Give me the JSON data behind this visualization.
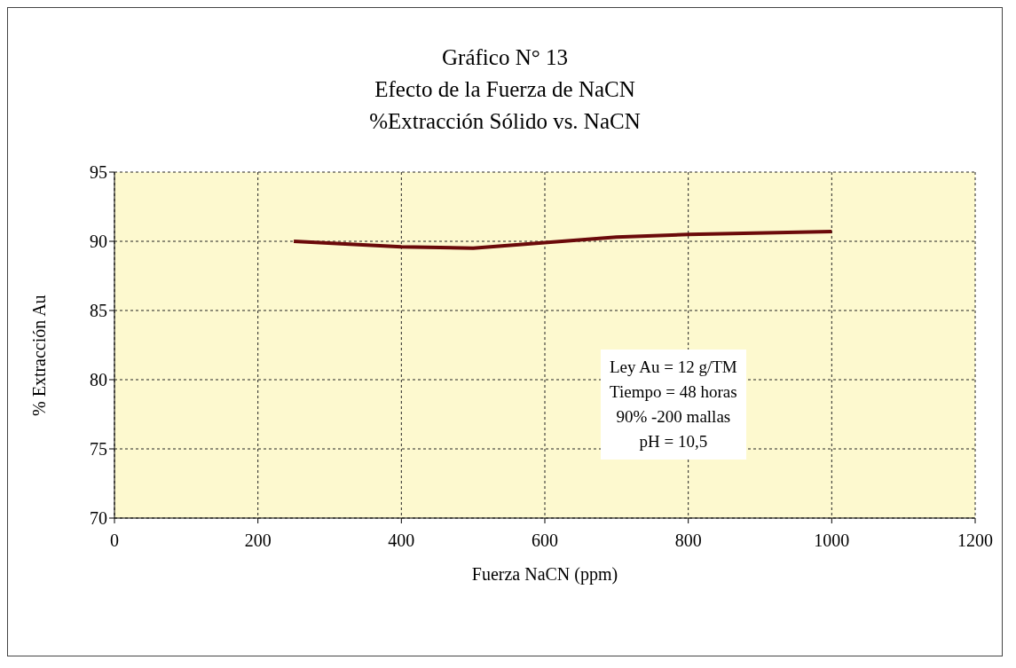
{
  "chart_data": {
    "type": "line",
    "title": "Gráfico N° 13",
    "subtitle": "Efecto de la Fuerza de NaCN\n%Extracción Sólido vs. NaCN",
    "xlabel": "Fuerza NaCN (ppm)",
    "ylabel": "% Extracción Au",
    "x": [
      250,
      400,
      500,
      600,
      700,
      800,
      1000
    ],
    "series": [
      {
        "color": "#6b0a0a",
        "values": [
          90,
          89.6,
          89.5,
          89.9,
          90.3,
          90.5,
          90.7
        ]
      }
    ],
    "xlim": [
      0,
      1200
    ],
    "xticks": [
      0,
      200,
      400,
      600,
      800,
      1000,
      1200
    ],
    "ylim": [
      70,
      95
    ],
    "yticks": [
      70,
      75,
      80,
      85,
      90,
      95
    ],
    "grid": true,
    "legend": false,
    "marker": "none",
    "line_style": "solid",
    "annotations": [
      "Ley Au = 12 g/TM\nTiempo = 48 horas\n90% -200 mallas\npH = 10,5"
    ]
  }
}
